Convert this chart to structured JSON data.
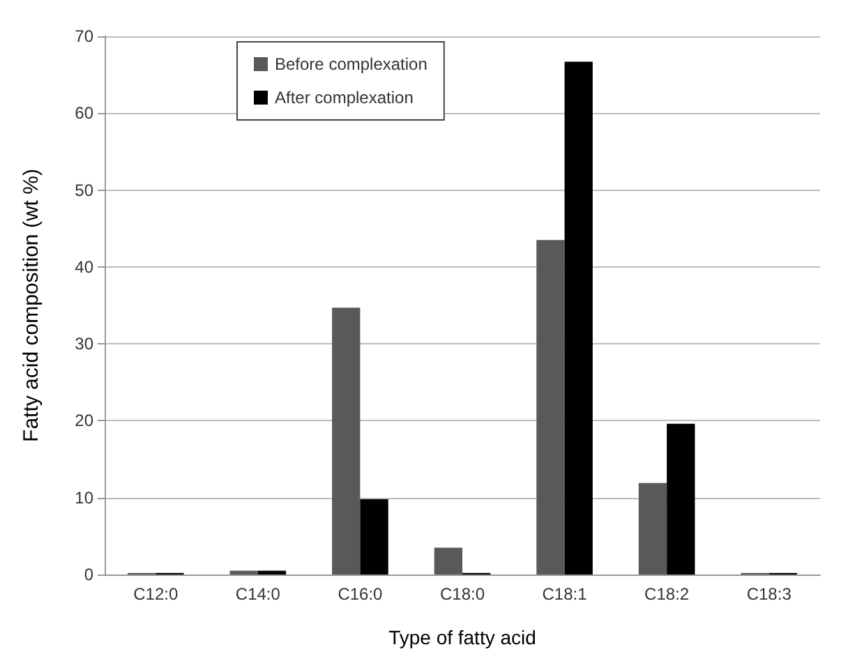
{
  "chart_data": {
    "type": "bar",
    "xlabel": "Type of fatty acid",
    "ylabel": "Fatty acid composition (wt %)",
    "categories": [
      "C12:0",
      "C14:0",
      "C16:0",
      "C18:0",
      "C18:1",
      "C18:2",
      "C18:3"
    ],
    "series": [
      {
        "name": "Before complexation",
        "color": "#595959",
        "values": [
          0.2,
          0.5,
          34.7,
          3.5,
          43.5,
          11.9,
          0.2
        ]
      },
      {
        "name": "After complexation",
        "color": "#000000",
        "values": [
          0.2,
          0.5,
          9.8,
          0.2,
          66.7,
          19.6,
          0.2
        ]
      }
    ],
    "ylim": [
      0,
      70
    ],
    "yticks": [
      0,
      10,
      20,
      30,
      40,
      50,
      60,
      70
    ],
    "grid": "y",
    "legend": "top left"
  }
}
